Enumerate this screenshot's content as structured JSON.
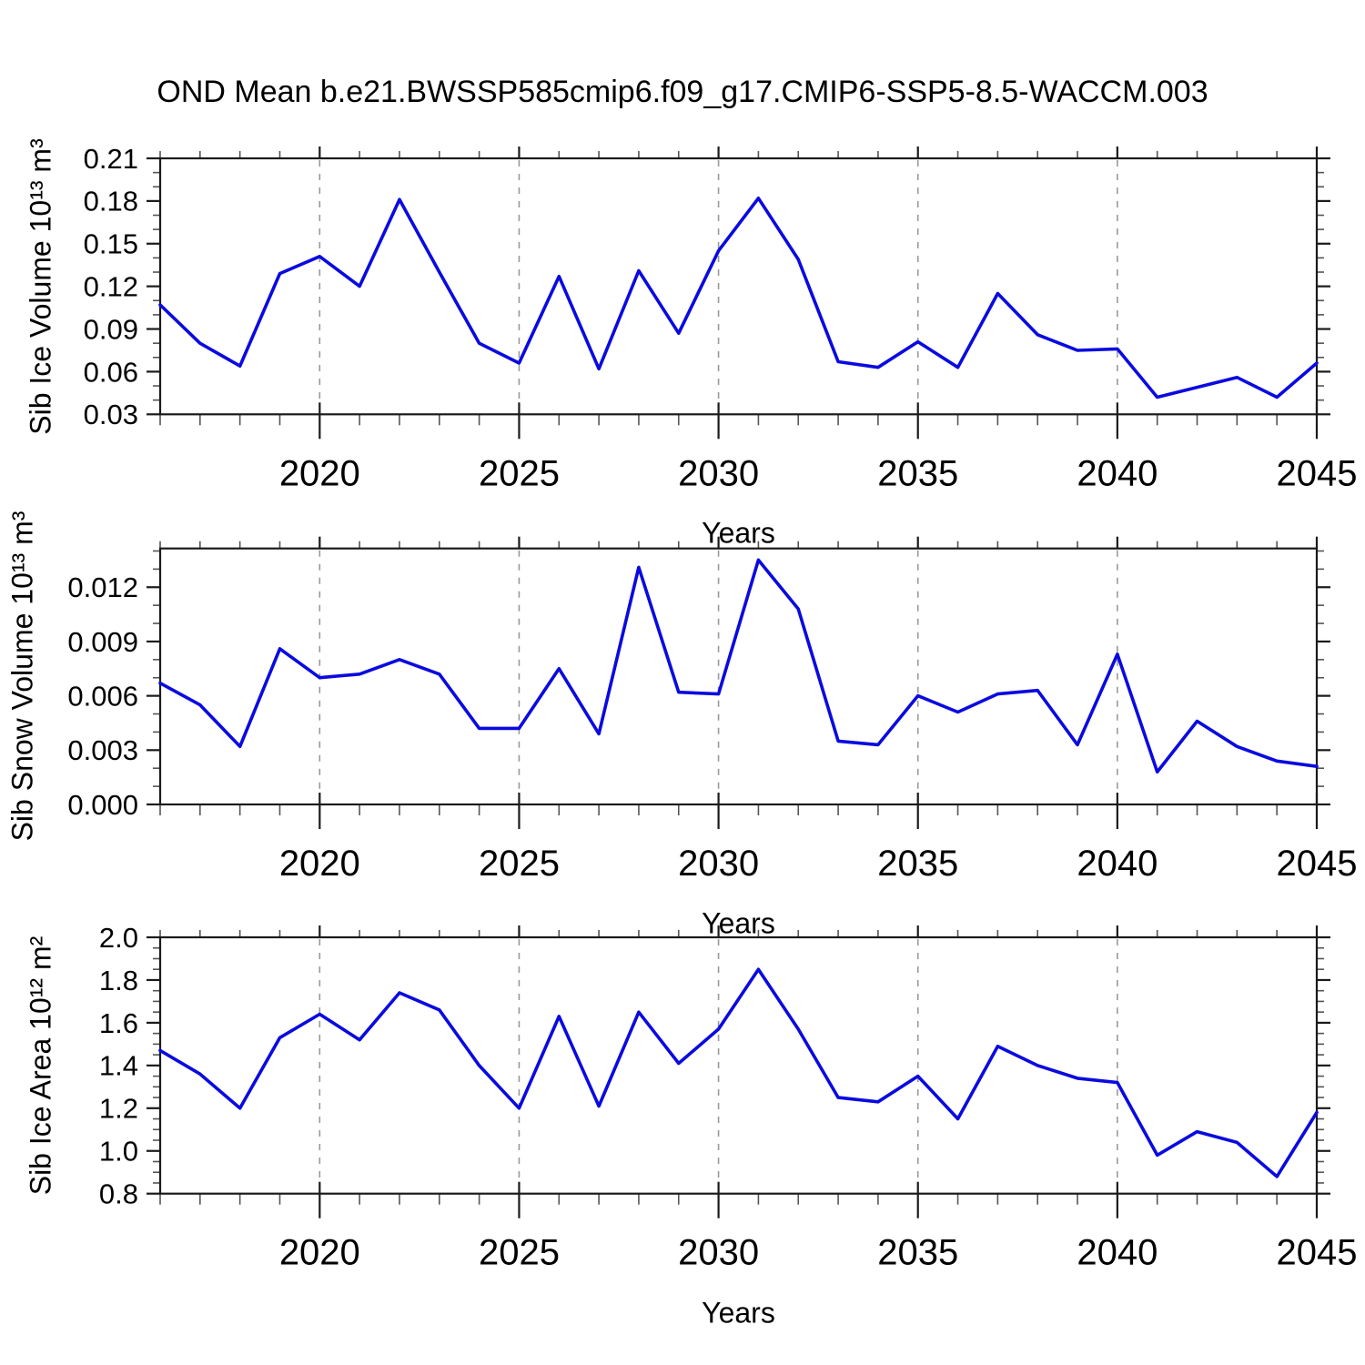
{
  "title": "OND Mean b.e21.BWSSP585cmip6.f09_g17.CMIP6-SSP5-8.5-WACCM.003",
  "line_color": "#0a0ae0",
  "grid_color": "#999999",
  "axis_color": "#1a1a1a",
  "minor_tick_color": "#555555",
  "chart_data": [
    {
      "type": "line",
      "ylabel": "Sib Ice Volume 10¹³ m³",
      "xlabel": "Years",
      "x": [
        2016,
        2017,
        2018,
        2019,
        2020,
        2021,
        2022,
        2023,
        2024,
        2025,
        2026,
        2027,
        2028,
        2029,
        2030,
        2031,
        2032,
        2033,
        2034,
        2035,
        2036,
        2037,
        2038,
        2039,
        2040,
        2041,
        2042,
        2043,
        2044,
        2045
      ],
      "values": [
        0.107,
        0.08,
        0.064,
        0.129,
        0.141,
        0.12,
        0.181,
        0.13,
        0.08,
        0.066,
        0.127,
        0.062,
        0.131,
        0.087,
        0.145,
        0.182,
        0.139,
        0.067,
        0.063,
        0.081,
        0.063,
        0.115,
        0.086,
        0.075,
        0.076,
        0.042,
        0.049,
        0.056,
        0.042,
        0.066
      ],
      "xlim": [
        2016,
        2045
      ],
      "ylim": [
        0.03,
        0.21
      ],
      "yticks": {
        "values": [
          0.03,
          0.06,
          0.09,
          0.12,
          0.15,
          0.18,
          0.21
        ],
        "labels": [
          "0.03",
          "0.06",
          "0.09",
          "0.12",
          "0.15",
          "0.18",
          "0.21"
        ],
        "minor_step": 0.01
      },
      "xticks": {
        "values": [
          2020,
          2025,
          2030,
          2035,
          2040,
          2045
        ],
        "labels": [
          "2020",
          "2025",
          "2030",
          "2035",
          "2040",
          "2045"
        ],
        "minor_step": 1
      },
      "grid": "vertical-dashed-at-major-x",
      "legend": "none"
    },
    {
      "type": "line",
      "ylabel": "Sib Snow Volume 10¹³ m³",
      "xlabel": "Years",
      "x": [
        2016,
        2017,
        2018,
        2019,
        2020,
        2021,
        2022,
        2023,
        2024,
        2025,
        2026,
        2027,
        2028,
        2029,
        2030,
        2031,
        2032,
        2033,
        2034,
        2035,
        2036,
        2037,
        2038,
        2039,
        2040,
        2041,
        2042,
        2043,
        2044,
        2045
      ],
      "values": [
        0.0067,
        0.0055,
        0.0032,
        0.0086,
        0.007,
        0.0072,
        0.008,
        0.0072,
        0.0042,
        0.0042,
        0.0075,
        0.0039,
        0.0131,
        0.0062,
        0.0061,
        0.0135,
        0.0108,
        0.0035,
        0.0033,
        0.006,
        0.0051,
        0.0061,
        0.0063,
        0.0033,
        0.0083,
        0.0018,
        0.0046,
        0.0032,
        0.0024,
        0.0021
      ],
      "xlim": [
        2016,
        2045
      ],
      "ylim": [
        0.0,
        0.01414
      ],
      "yticks": {
        "values": [
          0.0,
          0.003,
          0.006,
          0.009,
          0.012
        ],
        "labels": [
          "0.000",
          "0.003",
          "0.006",
          "0.009",
          "0.012"
        ],
        "minor_step": 0.001
      },
      "xticks": {
        "values": [
          2020,
          2025,
          2030,
          2035,
          2040,
          2045
        ],
        "labels": [
          "2020",
          "2025",
          "2030",
          "2035",
          "2040",
          "2045"
        ],
        "minor_step": 1
      },
      "grid": "vertical-dashed-at-major-x",
      "legend": "none"
    },
    {
      "type": "line",
      "ylabel": "Sib Ice Area 10¹² m²",
      "xlabel": "Years",
      "x": [
        2016,
        2017,
        2018,
        2019,
        2020,
        2021,
        2022,
        2023,
        2024,
        2025,
        2026,
        2027,
        2028,
        2029,
        2030,
        2031,
        2032,
        2033,
        2034,
        2035,
        2036,
        2037,
        2038,
        2039,
        2040,
        2041,
        2042,
        2043,
        2044,
        2045
      ],
      "values": [
        1.47,
        1.36,
        1.2,
        1.53,
        1.64,
        1.52,
        1.74,
        1.66,
        1.4,
        1.2,
        1.63,
        1.21,
        1.65,
        1.41,
        1.57,
        1.85,
        1.57,
        1.25,
        1.23,
        1.35,
        1.15,
        1.49,
        1.4,
        1.34,
        1.32,
        0.98,
        1.09,
        1.04,
        0.88,
        1.18
      ],
      "xlim": [
        2016,
        2045
      ],
      "ylim": [
        0.8,
        2.0
      ],
      "yticks": {
        "values": [
          0.8,
          1.0,
          1.2,
          1.4,
          1.6,
          1.8,
          2.0
        ],
        "labels": [
          "0.8",
          "1.0",
          "1.2",
          "1.4",
          "1.6",
          "1.8",
          "2.0"
        ],
        "minor_step": 0.05
      },
      "xticks": {
        "values": [
          2020,
          2025,
          2030,
          2035,
          2040,
          2045
        ],
        "labels": [
          "2020",
          "2025",
          "2030",
          "2035",
          "2040",
          "2045"
        ],
        "minor_step": 1
      },
      "grid": "vertical-dashed-at-major-x",
      "legend": "none"
    }
  ]
}
